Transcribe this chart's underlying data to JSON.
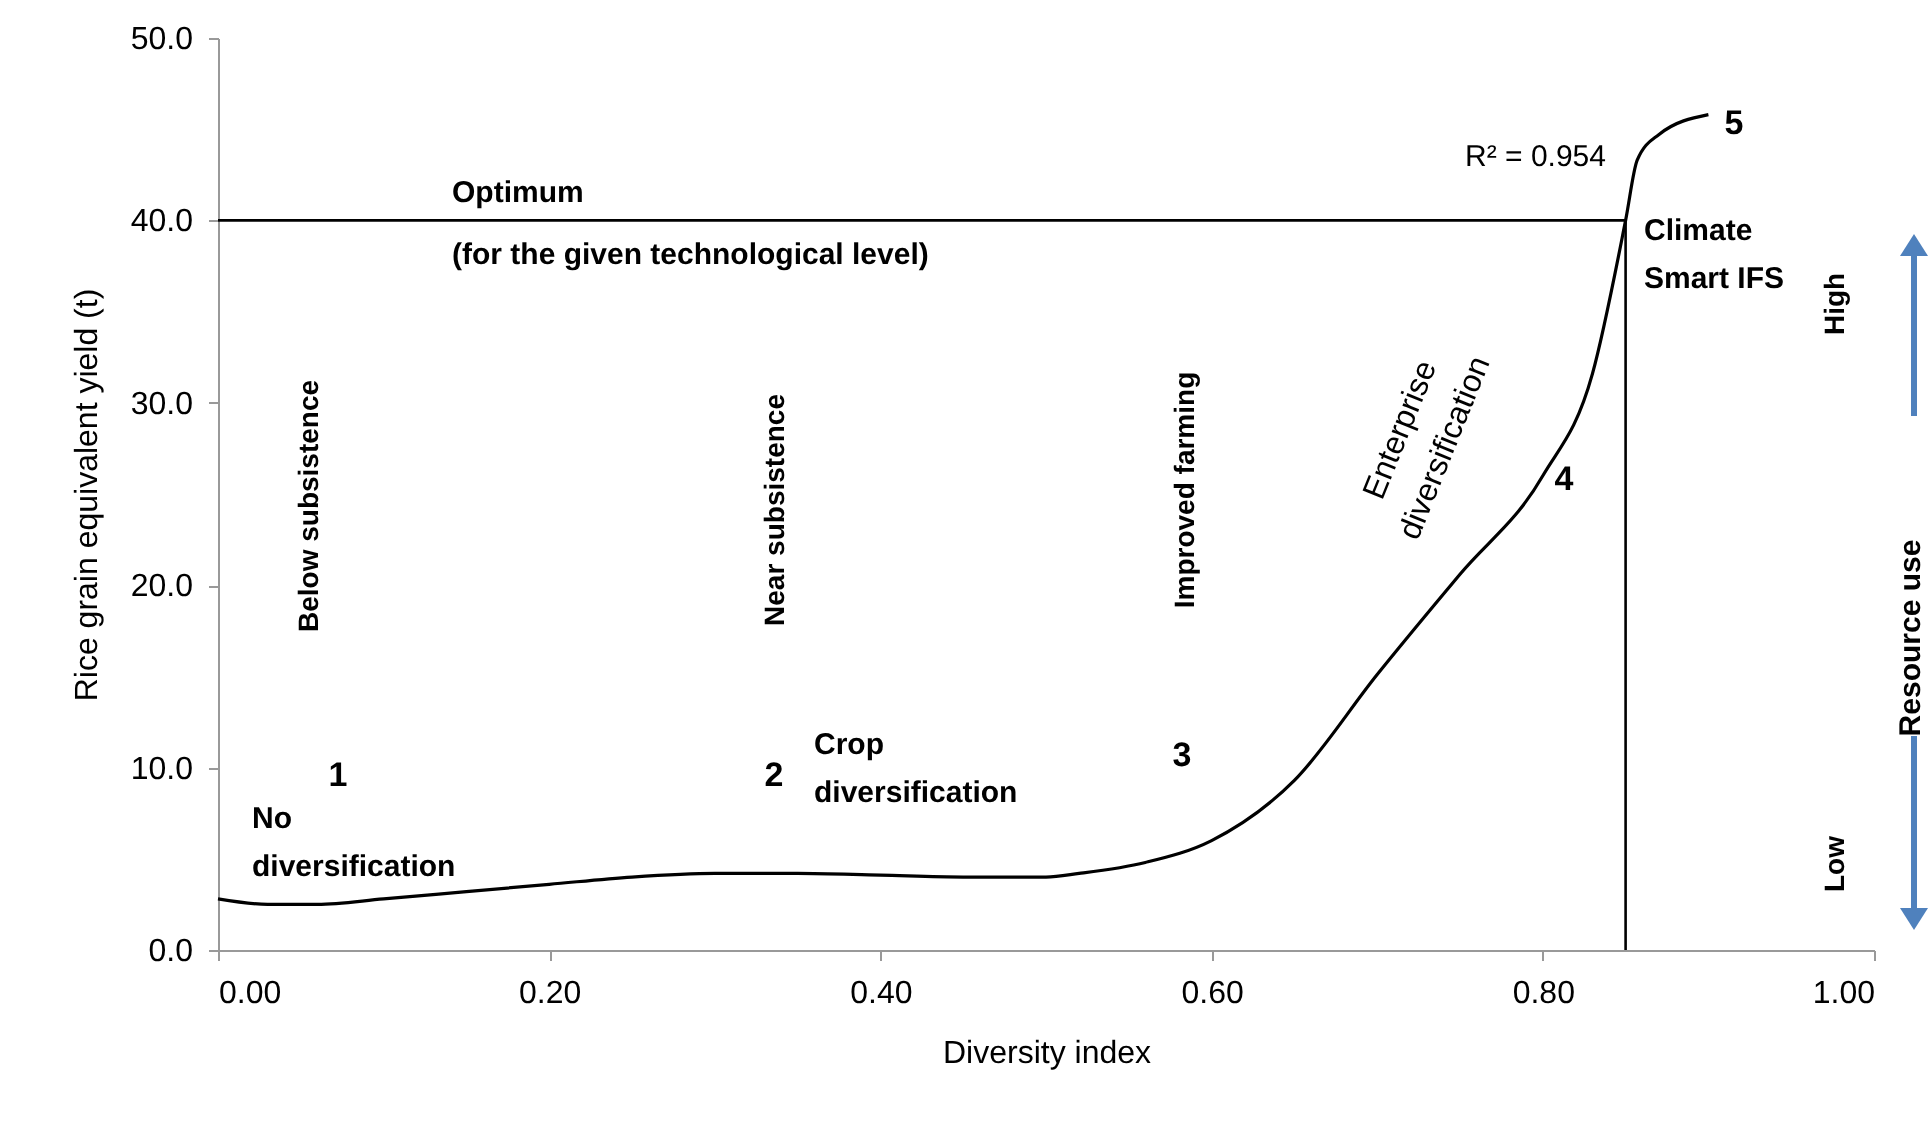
{
  "chart_data": {
    "type": "line",
    "xlabel": "Diversity index",
    "ylabel": "Rice grain equivalent yield (t)",
    "x": [
      0,
      0.03,
      0.06,
      0.1,
      0.15,
      0.2,
      0.25,
      0.3,
      0.35,
      0.4,
      0.45,
      0.5,
      0.52,
      0.56,
      0.6,
      0.65,
      0.7,
      0.75,
      0.8,
      0.83,
      0.85,
      0.857,
      0.87,
      0.9
    ],
    "series": [
      {
        "color": "#000000",
        "values": [
          2.8,
          2.5,
          2.5,
          2.8,
          3.2,
          3.6,
          4.0,
          4.2,
          4.2,
          4.1,
          4.0,
          4.0,
          4.2,
          4.8,
          6.0,
          9.3,
          15.1,
          20.6,
          26.0,
          31.6,
          40.0,
          43.3,
          44.7,
          45.8
        ]
      }
    ],
    "xlim": [
      0,
      1
    ],
    "xticks": [
      {
        "value": 0,
        "label": "0.00"
      },
      {
        "value": 0.2,
        "label": "0.20"
      },
      {
        "value": 0.4,
        "label": "0.40"
      },
      {
        "value": 0.6,
        "label": "0.60"
      },
      {
        "value": 0.8,
        "label": "0.80"
      },
      {
        "value": 1,
        "label": "1.00"
      }
    ],
    "ylim": [
      0,
      50
    ],
    "yticks": [
      {
        "value": 0,
        "label": "0.0"
      },
      {
        "value": 10,
        "label": "10.0"
      },
      {
        "value": 20,
        "label": "20.0"
      },
      {
        "value": 30,
        "label": "30.0"
      },
      {
        "value": 40,
        "label": "40.0"
      },
      {
        "value": 50,
        "label": "50.0"
      }
    ],
    "ref_lines": [
      {
        "axis": "y",
        "value": 40,
        "label": "Optimum"
      },
      {
        "axis": "x",
        "value": 0.85
      }
    ],
    "annotations": [
      "(for the given technological level)",
      "R² = 0.954",
      "5",
      "Climate Smart IFS",
      "Enterprise diversification",
      "4",
      "Improved farming",
      "3",
      "Crop diversification",
      "Near subsistence",
      "2",
      "Below subsistence",
      "1",
      "No diversification",
      "High",
      "Resource use",
      "Low"
    ],
    "grid": false,
    "marker": "none",
    "line_style": "solid"
  }
}
